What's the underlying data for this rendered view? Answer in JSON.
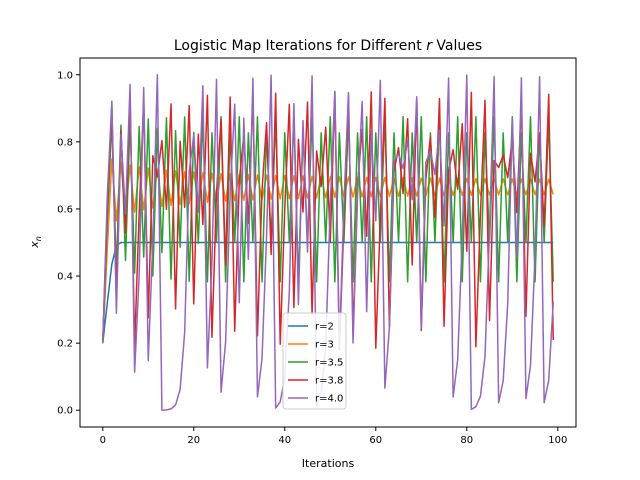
{
  "chart_data": {
    "type": "line",
    "title": {
      "prefix": "Logistic Map Iterations for Different ",
      "variable": "r",
      "suffix": " Values"
    },
    "xlabel": "Iterations",
    "ylabel": {
      "main": "x",
      "sub": "n"
    },
    "xlim": [
      -5,
      104
    ],
    "ylim": [
      -0.05,
      1.05
    ],
    "xticks": [
      0,
      20,
      40,
      60,
      80,
      100
    ],
    "yticks": [
      0.0,
      0.2,
      0.4,
      0.6,
      0.8,
      1.0
    ],
    "ytick_labels": [
      "0.0",
      "0.2",
      "0.4",
      "0.6",
      "0.8",
      "1.0"
    ],
    "grid": false,
    "legend_position": "lower-center",
    "x_start": 0,
    "x_end": 99,
    "initial_value": 0.2,
    "series": [
      {
        "name": "r=2",
        "r": 2.0,
        "color": "#1f77b4"
      },
      {
        "name": "r=3",
        "r": 3.0,
        "color": "#ff7f0e"
      },
      {
        "name": "r=3.5",
        "r": 3.5,
        "color": "#2ca02c"
      },
      {
        "name": "r=3.8",
        "r": 3.8,
        "color": "#d62728"
      },
      {
        "name": "r=4.0",
        "r": 4.0,
        "color": "#9467bd"
      }
    ]
  }
}
